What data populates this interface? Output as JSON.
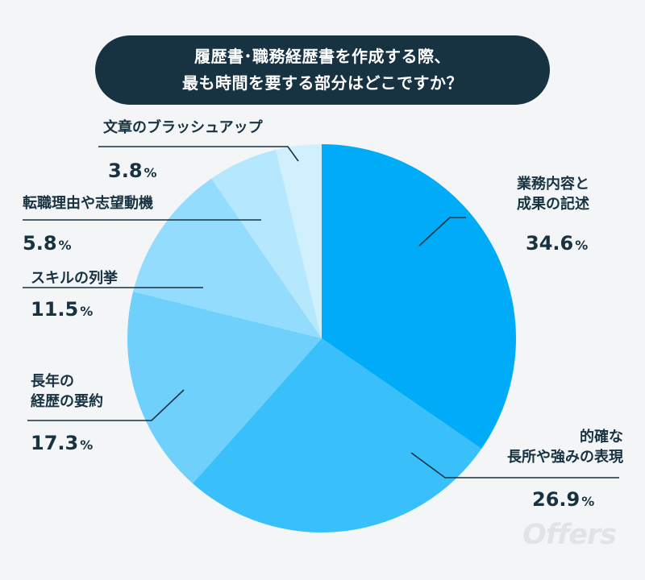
{
  "header": {
    "title_line1": "履歴書･職務経歴書を作成する際、",
    "title_line2": "最も時間を要する部分はどこですか？"
  },
  "brand": {
    "logo_text": "Offers"
  },
  "colors": {
    "background": "#f3f5f6",
    "title_bg": "#173241",
    "text": "#173241",
    "slices": [
      "#00abf7",
      "#39c0fb",
      "#6fd0fc",
      "#94dcfd",
      "#b5e7fd",
      "#d0f0fe"
    ],
    "logo": "#e1e4e7"
  },
  "chart_data": {
    "type": "pie",
    "unit": "%",
    "start_angle": "12 o'clock",
    "direction": "clockwise",
    "categories": [
      "業務内容と成果の記述",
      "的確な長所や強みの表現",
      "長年の経歴の要約",
      "スキルの列挙",
      "転職理由や志望動機",
      "文章のブラッシュアップ"
    ],
    "values": [
      34.6,
      26.9,
      17.3,
      11.5,
      5.8,
      3.8
    ],
    "value_labels": [
      "34.6",
      "26.9",
      "17.3",
      "11.5",
      "5.8",
      "3.8"
    ],
    "label_lines": [
      [
        "業務内容と",
        "成果の記述"
      ],
      [
        "的確な",
        "長所や強みの表現"
      ],
      [
        "長年の",
        "経歴の要約"
      ],
      [
        "スキルの列挙"
      ],
      [
        "転職理由や志望動機"
      ],
      [
        "文章のブラッシュアップ"
      ]
    ]
  }
}
